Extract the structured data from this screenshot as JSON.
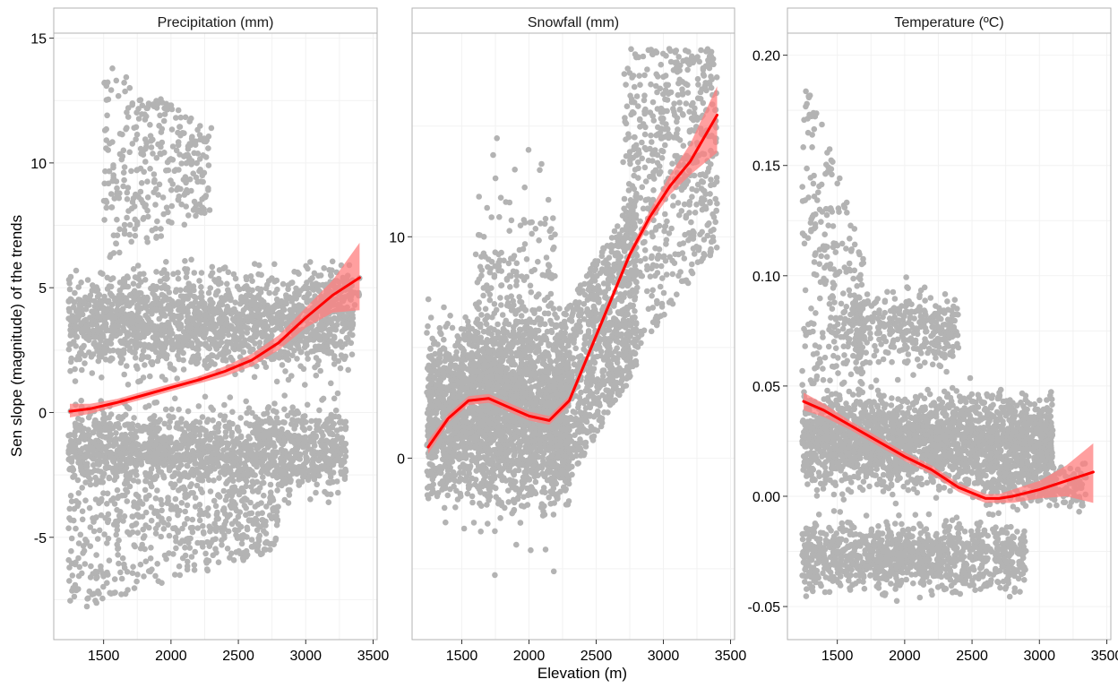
{
  "figure": {
    "ylabel": "Sen slope (magnitude) of the trends",
    "xlabel": "Elevation (m)"
  },
  "colors": {
    "points": "#b3b3b3",
    "trend_line": "#ff0000",
    "confidence_band": "#ff7f7f",
    "strip_background": "#ffffff",
    "panel_border": "#b3b3b3",
    "grid": "#f2f2f2"
  },
  "chart_data": [
    {
      "type": "scatter",
      "title": "Precipitation (mm)",
      "xlabel": "Elevation (m)",
      "ylabel": "Sen slope (magnitude) of the trends",
      "xlim": [
        1130,
        3530
      ],
      "ylim": [
        -9.1,
        15.2
      ],
      "xticks": [
        1500,
        2000,
        2500,
        3000,
        3500
      ],
      "yticks": [
        -5,
        0,
        5,
        10,
        15
      ],
      "ytick_labels": [
        "-5",
        "0",
        "5",
        "10",
        "15"
      ],
      "grid": true,
      "trend": {
        "method": "smoothed fit with confidence band",
        "x": [
          1250,
          1400,
          1600,
          1800,
          2000,
          2200,
          2400,
          2600,
          2800,
          3000,
          3200,
          3400
        ],
        "y": [
          0.05,
          0.15,
          0.4,
          0.7,
          1.0,
          1.3,
          1.65,
          2.1,
          2.8,
          3.8,
          4.7,
          5.4
        ],
        "ci_lower": [
          -0.2,
          -0.05,
          0.25,
          0.55,
          0.85,
          1.15,
          1.45,
          1.85,
          2.5,
          3.4,
          4.0,
          4.1
        ],
        "ci_upper": [
          0.35,
          0.35,
          0.55,
          0.85,
          1.15,
          1.45,
          1.85,
          2.35,
          3.1,
          4.2,
          5.3,
          6.8
        ]
      },
      "point_groups": [
        {
          "x_range": [
            1240,
            3350
          ],
          "y_range": [
            0.8,
            6.5
          ],
          "n": 1700
        },
        {
          "x_range": [
            1240,
            3300
          ],
          "y_range": [
            -4.0,
            1.0
          ],
          "n": 1500
        },
        {
          "x_range": [
            1240,
            2800
          ],
          "y_range": [
            -8.0,
            -3.5
          ],
          "n": 450
        },
        {
          "x_range": [
            1500,
            2300
          ],
          "y_range": [
            6.0,
            13.9
          ],
          "n": 320
        },
        {
          "x_range": [
            3000,
            3400
          ],
          "y_range": [
            3.5,
            6.2
          ],
          "n": 70
        }
      ]
    },
    {
      "type": "scatter",
      "title": "Snowfall (mm)",
      "xlabel": "Elevation (m)",
      "ylim": [
        -8.2,
        19.2
      ],
      "xlim": [
        1130,
        3530
      ],
      "xticks": [
        1500,
        2000,
        2500,
        3000,
        3500
      ],
      "yticks": [
        0,
        10
      ],
      "ytick_labels": [
        "0",
        "10"
      ],
      "grid": true,
      "trend": {
        "method": "smoothed fit with confidence band",
        "x": [
          1250,
          1400,
          1550,
          1700,
          1850,
          2000,
          2150,
          2300,
          2450,
          2600,
          2750,
          2900,
          3050,
          3200,
          3400
        ],
        "y": [
          0.5,
          1.8,
          2.6,
          2.7,
          2.3,
          1.9,
          1.7,
          2.6,
          4.8,
          7.0,
          9.2,
          10.9,
          12.3,
          13.4,
          15.5
        ],
        "ci_lower": [
          0.2,
          1.6,
          2.4,
          2.5,
          2.1,
          1.7,
          1.5,
          2.4,
          4.6,
          6.8,
          9.0,
          10.6,
          11.9,
          12.8,
          13.8
        ],
        "ci_upper": [
          0.8,
          2.0,
          2.8,
          2.9,
          2.5,
          2.1,
          1.9,
          2.8,
          5.0,
          7.2,
          9.4,
          11.2,
          12.8,
          14.2,
          16.8
        ]
      },
      "point_groups": [
        {
          "x_range": [
            1240,
            2300
          ],
          "y_range": [
            -3.5,
            7.5
          ],
          "n": 2300
        },
        {
          "x_range": [
            1600,
            2200
          ],
          "y_range": [
            -6.0,
            15.5
          ],
          "n": 500
        },
        {
          "x_range": [
            2200,
            2800
          ],
          "y_range": [
            -2.0,
            11.0
          ],
          "n": 900
        },
        {
          "x_range": [
            2700,
            3400
          ],
          "y_range": [
            4.0,
            18.5
          ],
          "n": 600
        }
      ]
    },
    {
      "type": "scatter",
      "title": "Temperature (ºC)",
      "xlabel": "Elevation (m)",
      "ylim": [
        -0.065,
        0.21
      ],
      "xlim": [
        1130,
        3530
      ],
      "xticks": [
        1500,
        2000,
        2500,
        3000,
        3500
      ],
      "yticks": [
        -0.05,
        0.0,
        0.05,
        0.1,
        0.15,
        0.2
      ],
      "ytick_labels": [
        "-0.05",
        "0.00",
        "0.05",
        "0.10",
        "0.15",
        "0.20"
      ],
      "grid": true,
      "trend": {
        "method": "smoothed fit with confidence band",
        "x": [
          1250,
          1400,
          1600,
          1800,
          2000,
          2200,
          2400,
          2600,
          2700,
          2800,
          3000,
          3200,
          3400
        ],
        "y": [
          0.043,
          0.039,
          0.032,
          0.025,
          0.018,
          0.012,
          0.004,
          -0.001,
          -0.001,
          0.0,
          0.003,
          0.007,
          0.011
        ],
        "ci_lower": [
          0.039,
          0.036,
          0.03,
          0.023,
          0.016,
          0.01,
          0.002,
          -0.003,
          -0.003,
          -0.003,
          -0.001,
          0.0,
          -0.003
        ],
        "ci_upper": [
          0.047,
          0.042,
          0.034,
          0.027,
          0.02,
          0.014,
          0.006,
          0.001,
          0.001,
          0.003,
          0.007,
          0.014,
          0.024
        ]
      },
      "point_groups": [
        {
          "x_range": [
            1240,
            3100
          ],
          "y_range": [
            -0.005,
            0.055
          ],
          "n": 2300
        },
        {
          "x_range": [
            1240,
            2900
          ],
          "y_range": [
            -0.05,
            -0.005
          ],
          "n": 1100
        },
        {
          "x_range": [
            1240,
            1700
          ],
          "y_range": [
            0.05,
            0.197
          ],
          "n": 260
        },
        {
          "x_range": [
            1600,
            2400
          ],
          "y_range": [
            0.05,
            0.1
          ],
          "n": 350
        },
        {
          "x_range": [
            2600,
            3350
          ],
          "y_range": [
            -0.01,
            0.02
          ],
          "n": 200
        }
      ]
    }
  ]
}
